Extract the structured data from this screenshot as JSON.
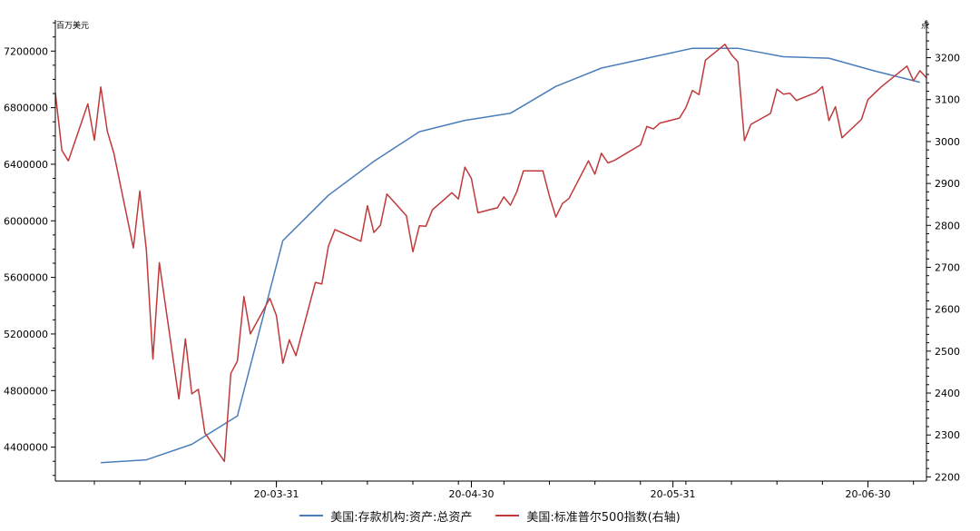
{
  "chart_data": {
    "type": "line",
    "left_unit": "百万美元",
    "right_unit": "点",
    "x_ticks": [
      "20-03-31",
      "20-04-30",
      "20-05-31",
      "20-06-30"
    ],
    "left_axis": {
      "ylim": [
        4160000,
        7420000
      ],
      "ticks": [
        "4400000",
        "4800000",
        "5200000",
        "5600000",
        "6000000",
        "6400000",
        "6800000",
        "7200000"
      ]
    },
    "right_axis": {
      "ylim": [
        2190,
        3290
      ],
      "ticks": [
        "2200",
        "2300",
        "2400",
        "2500",
        "2600",
        "2700",
        "2800",
        "2900",
        "3000",
        "3100",
        "3200"
      ]
    },
    "grid": false,
    "legend_position": "bottom",
    "colors": {
      "deposits": "#4a7ebb",
      "sp500": "#c0393b"
    },
    "series": [
      {
        "name": "美国:存款机构:资产:总资产",
        "axis": "left",
        "points": [
          [
            "2020-03-04",
            4290000
          ],
          [
            "2020-03-11",
            4310000
          ],
          [
            "2020-03-18",
            4420000
          ],
          [
            "2020-03-25",
            4620000
          ],
          [
            "2020-04-01",
            5860000
          ],
          [
            "2020-04-08",
            6180000
          ],
          [
            "2020-04-15",
            6420000
          ],
          [
            "2020-04-22",
            6630000
          ],
          [
            "2020-04-29",
            6710000
          ],
          [
            "2020-05-06",
            6760000
          ],
          [
            "2020-05-13",
            6950000
          ],
          [
            "2020-05-20",
            7080000
          ],
          [
            "2020-05-27",
            7150000
          ],
          [
            "2020-06-03",
            7220000
          ],
          [
            "2020-06-10",
            7220000
          ],
          [
            "2020-06-17",
            7160000
          ],
          [
            "2020-06-24",
            7150000
          ],
          [
            "2020-07-01",
            7060000
          ],
          [
            "2020-07-08",
            6980000
          ]
        ]
      },
      {
        "name": "美国:标准普尔500指数(右轴)",
        "axis": "right",
        "points": [
          [
            "2020-02-26",
            3116
          ],
          [
            "2020-02-27",
            2979
          ],
          [
            "2020-02-28",
            2954
          ],
          [
            "2020-03-02",
            3090
          ],
          [
            "2020-03-03",
            3003
          ],
          [
            "2020-03-04",
            3130
          ],
          [
            "2020-03-05",
            3024
          ],
          [
            "2020-03-06",
            2972
          ],
          [
            "2020-03-09",
            2746
          ],
          [
            "2020-03-10",
            2882
          ],
          [
            "2020-03-11",
            2741
          ],
          [
            "2020-03-12",
            2481
          ],
          [
            "2020-03-13",
            2711
          ],
          [
            "2020-03-16",
            2386
          ],
          [
            "2020-03-17",
            2529
          ],
          [
            "2020-03-18",
            2398
          ],
          [
            "2020-03-19",
            2409
          ],
          [
            "2020-03-20",
            2305
          ],
          [
            "2020-03-23",
            2237
          ],
          [
            "2020-03-24",
            2447
          ],
          [
            "2020-03-25",
            2476
          ],
          [
            "2020-03-26",
            2630
          ],
          [
            "2020-03-27",
            2541
          ],
          [
            "2020-03-30",
            2626
          ],
          [
            "2020-03-31",
            2585
          ],
          [
            "2020-04-01",
            2471
          ],
          [
            "2020-04-02",
            2527
          ],
          [
            "2020-04-03",
            2489
          ],
          [
            "2020-04-06",
            2664
          ],
          [
            "2020-04-07",
            2660
          ],
          [
            "2020-04-08",
            2750
          ],
          [
            "2020-04-09",
            2790
          ],
          [
            "2020-04-13",
            2762
          ],
          [
            "2020-04-14",
            2847
          ],
          [
            "2020-04-15",
            2783
          ],
          [
            "2020-04-16",
            2800
          ],
          [
            "2020-04-17",
            2875
          ],
          [
            "2020-04-20",
            2823
          ],
          [
            "2020-04-21",
            2737
          ],
          [
            "2020-04-22",
            2799
          ],
          [
            "2020-04-23",
            2798
          ],
          [
            "2020-04-24",
            2837
          ],
          [
            "2020-04-27",
            2878
          ],
          [
            "2020-04-28",
            2863
          ],
          [
            "2020-04-29",
            2939
          ],
          [
            "2020-04-30",
            2912
          ],
          [
            "2020-05-01",
            2830
          ],
          [
            "2020-05-04",
            2842
          ],
          [
            "2020-05-05",
            2868
          ],
          [
            "2020-05-06",
            2848
          ],
          [
            "2020-05-07",
            2881
          ],
          [
            "2020-05-08",
            2930
          ],
          [
            "2020-05-11",
            2930
          ],
          [
            "2020-05-12",
            2870
          ],
          [
            "2020-05-13",
            2820
          ],
          [
            "2020-05-14",
            2852
          ],
          [
            "2020-05-15",
            2864
          ],
          [
            "2020-05-18",
            2954
          ],
          [
            "2020-05-19",
            2922
          ],
          [
            "2020-05-20",
            2972
          ],
          [
            "2020-05-21",
            2949
          ],
          [
            "2020-05-22",
            2955
          ],
          [
            "2020-05-26",
            2992
          ],
          [
            "2020-05-27",
            3036
          ],
          [
            "2020-05-28",
            3030
          ],
          [
            "2020-05-29",
            3044
          ],
          [
            "2020-06-01",
            3056
          ],
          [
            "2020-06-02",
            3081
          ],
          [
            "2020-06-03",
            3122
          ],
          [
            "2020-06-04",
            3112
          ],
          [
            "2020-06-05",
            3194
          ],
          [
            "2020-06-08",
            3232
          ],
          [
            "2020-06-09",
            3207
          ],
          [
            "2020-06-10",
            3190
          ],
          [
            "2020-06-11",
            3002
          ],
          [
            "2020-06-12",
            3041
          ],
          [
            "2020-06-15",
            3067
          ],
          [
            "2020-06-16",
            3125
          ],
          [
            "2020-06-17",
            3113
          ],
          [
            "2020-06-18",
            3115
          ],
          [
            "2020-06-19",
            3098
          ],
          [
            "2020-06-22",
            3117
          ],
          [
            "2020-06-23",
            3131
          ],
          [
            "2020-06-24",
            3050
          ],
          [
            "2020-06-25",
            3083
          ],
          [
            "2020-06-26",
            3009
          ],
          [
            "2020-06-29",
            3053
          ],
          [
            "2020-06-30",
            3100
          ],
          [
            "2020-07-01",
            3115
          ],
          [
            "2020-07-02",
            3130
          ],
          [
            "2020-07-06",
            3180
          ],
          [
            "2020-07-07",
            3145
          ],
          [
            "2020-07-08",
            3169
          ],
          [
            "2020-07-09",
            3152
          ]
        ]
      }
    ]
  }
}
